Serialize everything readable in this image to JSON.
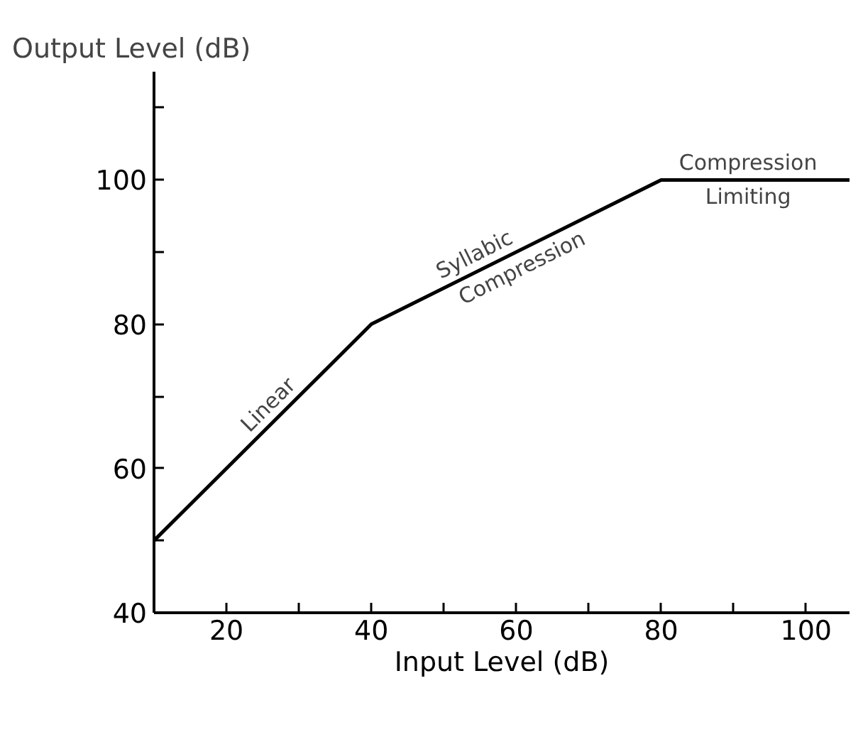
{
  "chart_data": {
    "type": "line",
    "title": "Output Level (dB)",
    "xlabel": "Input Level (dB)",
    "x": [
      10,
      40,
      80,
      106
    ],
    "series": [
      {
        "color": "#000000",
        "values": [
          50,
          80,
          100,
          100
        ]
      }
    ],
    "xlim": [
      10,
      106
    ],
    "ylim": [
      40,
      115
    ],
    "xticks": [
      20,
      {
        "value": 30,
        "label": null
      },
      40,
      {
        "value": 50,
        "label": null
      },
      60,
      {
        "value": 70,
        "label": null
      },
      80,
      {
        "value": 90,
        "label": null
      },
      100
    ],
    "yticks": [
      40,
      {
        "value": 50,
        "label": null
      },
      60,
      {
        "value": 70,
        "label": null
      },
      80,
      {
        "value": 90,
        "label": null
      },
      100,
      {
        "value": 110,
        "label": null
      }
    ],
    "annotations": [
      {
        "text": "Linear",
        "x": 27,
        "y": 67
      },
      {
        "text": "Syllabic",
        "x": 55,
        "y": 87.5
      },
      {
        "text": "Compression",
        "x": 60,
        "y": 90
      },
      {
        "text": "Compression",
        "x": 92,
        "y": 100
      },
      {
        "text": "Limiting",
        "x": 92,
        "y": 100
      }
    ],
    "grid": false,
    "marker": "none",
    "line_style": "solid"
  }
}
